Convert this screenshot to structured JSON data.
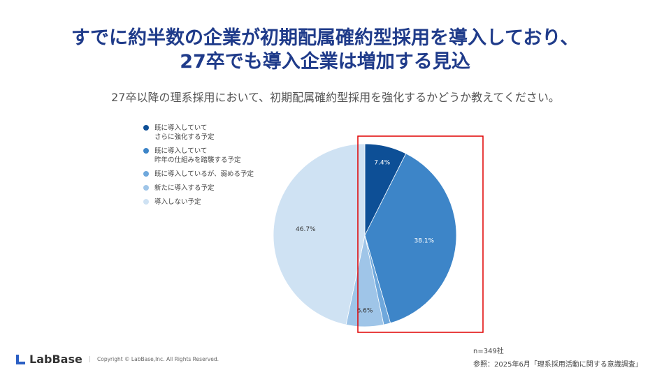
{
  "title": {
    "line1": "すでに約半数の企業が初期配属確約型採用を導入しており、",
    "line2": "27卒でも導入企業は増加する見込"
  },
  "subtitle": "27卒以降の理系採用において、初期配属確約型採用を強化するかどうか教えてください。",
  "chart_data": {
    "type": "pie",
    "title": "27卒以降の理系採用において、初期配属確約型採用を強化するかどうか教えてください。",
    "legend_position": "left",
    "slices": [
      {
        "label": "既に導入していて\nさらに強化する予定",
        "line1": "既に導入していて",
        "line2": "さらに強化する予定",
        "value": 7.4,
        "data_label": "7.4%",
        "color": "#0d4f96"
      },
      {
        "label": "既に導入していて\n昨年の仕組みを踏襲する予定",
        "line1": "既に導入していて",
        "line2": "昨年の仕組みを踏襲する予定",
        "value": 38.1,
        "data_label": "38.1%",
        "color": "#3d85c8"
      },
      {
        "label": "既に導入しているが、弱める予定",
        "line1": "既に導入しているが、弱める予定",
        "line2": "",
        "value": 1.2,
        "data_label": "",
        "color": "#6fa8dc"
      },
      {
        "label": "新たに導入する予定",
        "line1": "新たに導入する予定",
        "line2": "",
        "value": 6.6,
        "data_label": "6.6%",
        "color": "#9fc5e8"
      },
      {
        "label": "導入しない予定",
        "line1": "導入しない予定",
        "line2": "",
        "value": 46.7,
        "data_label": "46.7%",
        "color": "#cfe2f3"
      }
    ]
  },
  "highlight_color": "#e00000",
  "notes": {
    "n": "n=349社",
    "source": "参照：2025年6月「理系採用活動に関する意識調査」"
  },
  "footer": {
    "logo": "LabBase",
    "copyright": "Copyright ©  LabBase,Inc. All Rights Reserved."
  }
}
